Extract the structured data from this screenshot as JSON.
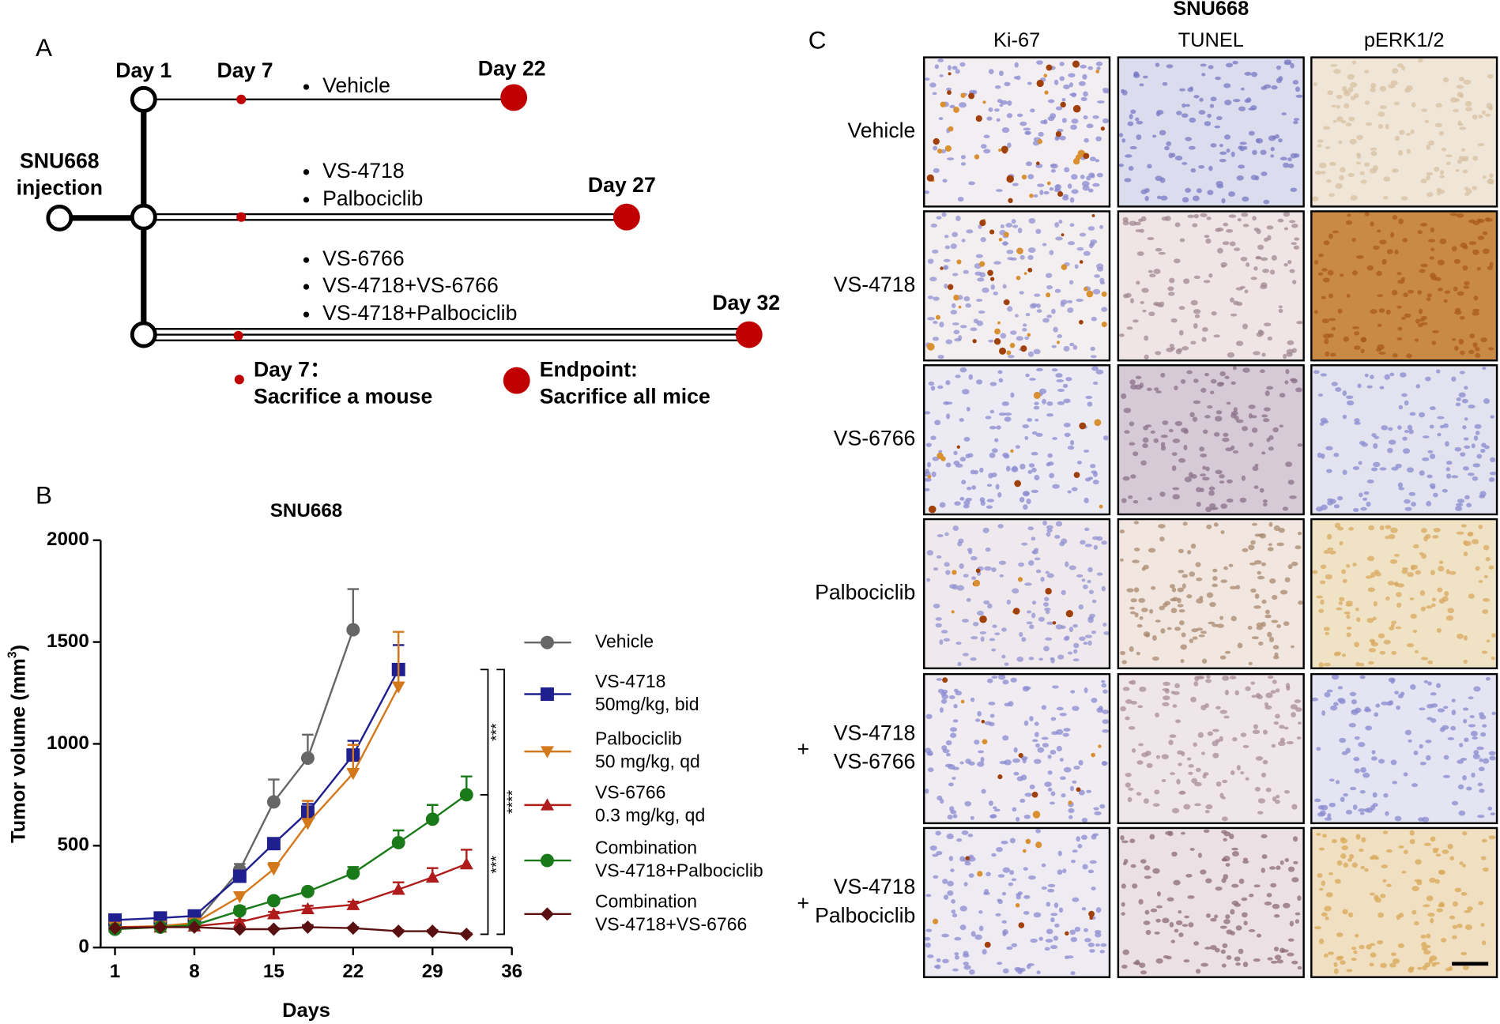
{
  "panel_a": {
    "label": "A",
    "injection": [
      "SNU668",
      "injection"
    ],
    "days": {
      "start": "Day 1",
      "sample": "Day 7",
      "ends": [
        "Day 22",
        "Day 27",
        "Day 32"
      ]
    },
    "groups": [
      [
        "Vehicle"
      ],
      [
        "VS-4718",
        "Palbociclib"
      ],
      [
        "VS-6766",
        "VS-4718+VS-6766",
        "VS-4718+Palbociclib"
      ]
    ],
    "legend": {
      "sample": [
        "Day 7：",
        "Sacrifice a mouse"
      ],
      "endpoint": [
        "Endpoint:",
        "Sacrifice all mice"
      ]
    }
  },
  "chart_data": {
    "type": "line",
    "label": "B",
    "title": "SNU668",
    "xlabel": "Days",
    "ylabel": {
      "text": "Tumor volume (mm",
      "sup": "3",
      "close": ")"
    },
    "xlim": [
      1,
      36
    ],
    "xticks": [
      1,
      8,
      15,
      22,
      29,
      36
    ],
    "ylim": [
      0,
      2000
    ],
    "yticks": [
      0,
      500,
      1000,
      1500,
      2000
    ],
    "series": [
      {
        "name": [
          "Vehicle"
        ],
        "color": "#666666",
        "marker": "circle",
        "x": [
          1,
          5,
          8,
          12,
          15,
          18,
          22
        ],
        "values": [
          90,
          105,
          115,
          380,
          715,
          930,
          1560
        ],
        "errors": [
          0,
          0,
          0,
          30,
          110,
          115,
          200
        ]
      },
      {
        "name": [
          "VS-4718",
          "50mg/kg, bid"
        ],
        "color": "#1f1f8f",
        "marker": "square",
        "x": [
          1,
          5,
          8,
          12,
          15,
          18,
          22,
          26
        ],
        "values": [
          135,
          145,
          155,
          350,
          510,
          665,
          945,
          1365
        ],
        "errors": [
          0,
          0,
          0,
          20,
          20,
          40,
          70,
          120
        ]
      },
      {
        "name": [
          "Palbociclib",
          "50 mg/kg, qd"
        ],
        "color": "#d4781c",
        "marker": "triangle-down",
        "x": [
          1,
          5,
          8,
          12,
          15,
          18,
          22,
          26
        ],
        "values": [
          100,
          105,
          120,
          250,
          385,
          610,
          855,
          1280
        ],
        "errors": [
          0,
          0,
          0,
          20,
          30,
          110,
          140,
          270
        ]
      },
      {
        "name": [
          "VS-6766",
          "0.3 mg/kg, qd"
        ],
        "color": "#b01c1c",
        "marker": "triangle-up",
        "x": [
          1,
          5,
          8,
          12,
          15,
          18,
          22,
          26,
          29,
          32
        ],
        "values": [
          100,
          100,
          105,
          125,
          165,
          190,
          210,
          285,
          345,
          410
        ],
        "errors": [
          0,
          0,
          0,
          10,
          10,
          15,
          15,
          35,
          45,
          70
        ]
      },
      {
        "name": [
          "Combination",
          "VS-4718+Palbociclib"
        ],
        "color": "#1a7a1a",
        "marker": "circle",
        "x": [
          1,
          5,
          8,
          12,
          15,
          18,
          22,
          26,
          29,
          32
        ],
        "values": [
          90,
          100,
          110,
          180,
          230,
          275,
          365,
          515,
          630,
          750
        ],
        "errors": [
          0,
          0,
          0,
          20,
          15,
          15,
          30,
          60,
          70,
          90
        ]
      },
      {
        "name": [
          "Combination",
          "VS-4718+VS-6766"
        ],
        "color": "#5a1010",
        "marker": "diamond",
        "x": [
          1,
          5,
          8,
          12,
          15,
          18,
          22,
          26,
          29,
          32
        ],
        "values": [
          95,
          100,
          100,
          90,
          90,
          100,
          95,
          80,
          80,
          65
        ],
        "errors": [
          0,
          0,
          0,
          5,
          5,
          10,
          5,
          5,
          5,
          5
        ]
      }
    ],
    "annotations": [
      {
        "text": "***",
        "series": [
          1,
          4
        ]
      },
      {
        "text": "***",
        "series": [
          4,
          5
        ]
      },
      {
        "text": "****",
        "series": [
          1,
          5
        ]
      }
    ]
  },
  "panel_c": {
    "label": "C",
    "title": "SNU668",
    "columns": [
      "Ki-67",
      "TUNEL",
      "pERK1/2"
    ],
    "rows": [
      [
        "Vehicle"
      ],
      [
        "VS-4718"
      ],
      [
        "VS-6766"
      ],
      [
        "Palbociclib"
      ],
      [
        "+",
        "VS-4718",
        "VS-6766"
      ],
      [
        "+",
        "VS-4718",
        "Palbociclib"
      ]
    ]
  }
}
